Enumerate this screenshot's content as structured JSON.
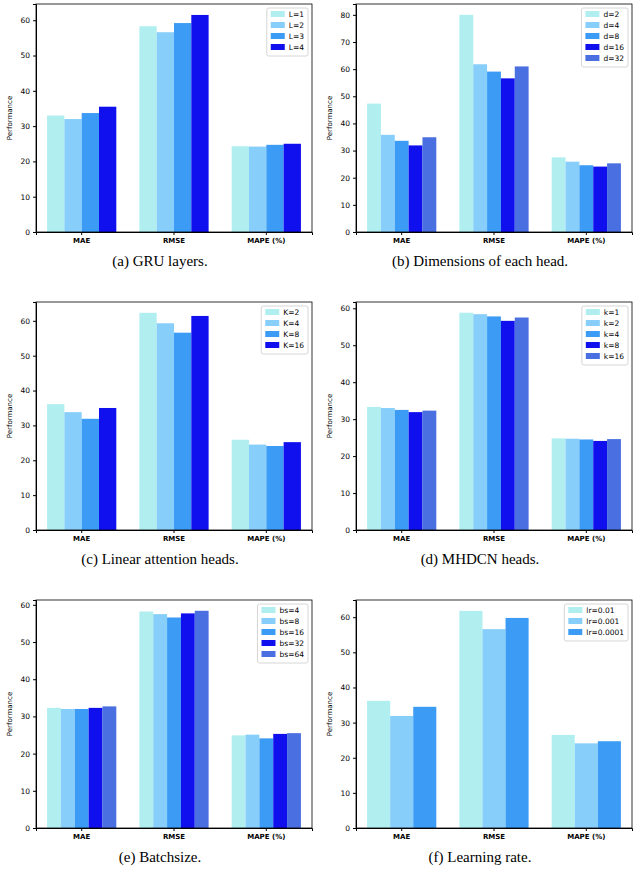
{
  "chart_data": [
    {
      "type": "bar",
      "title": "(a) GRU layers.",
      "ylabel": "Performance",
      "categories": [
        "MAE",
        "RMSE",
        "MAPE (%)"
      ],
      "series": [
        {
          "name": "L=1",
          "color": "#b0eef0",
          "values": [
            33.0,
            58.3,
            24.3
          ]
        },
        {
          "name": "L=2",
          "color": "#87cefa",
          "values": [
            32.0,
            56.6,
            24.2
          ]
        },
        {
          "name": "L=3",
          "color": "#3c9cf5",
          "values": [
            33.7,
            59.2,
            24.7
          ]
        },
        {
          "name": "L=4",
          "color": "#1010ee",
          "values": [
            35.5,
            61.5,
            25.0
          ]
        }
      ],
      "ylim": [
        0,
        64.6
      ],
      "yticks": [
        0,
        10,
        20,
        30,
        40,
        50,
        60
      ],
      "legend": "upper right"
    },
    {
      "type": "bar",
      "title": "(b) Dimensions of each head.",
      "ylabel": "Performance",
      "categories": [
        "MAE",
        "RMSE",
        "MAPE (%)"
      ],
      "series": [
        {
          "name": "d=2",
          "color": "#b0eef0",
          "values": [
            47.3,
            80.0,
            27.5
          ]
        },
        {
          "name": "d=4",
          "color": "#87cefa",
          "values": [
            35.8,
            61.8,
            25.9
          ]
        },
        {
          "name": "d=8",
          "color": "#3c9cf5",
          "values": [
            33.6,
            59.1,
            24.6
          ]
        },
        {
          "name": "d=16",
          "color": "#1010ee",
          "values": [
            31.9,
            56.6,
            24.1
          ]
        },
        {
          "name": "d=32",
          "color": "#4a6fe0",
          "values": [
            34.9,
            61.0,
            25.3
          ]
        }
      ],
      "ylim": [
        0,
        84
      ],
      "yticks": [
        0,
        10,
        20,
        30,
        40,
        50,
        60,
        70,
        80
      ],
      "legend": "upper right"
    },
    {
      "type": "bar",
      "title": "(c) Linear attention heads.",
      "ylabel": "Performance",
      "categories": [
        "MAE",
        "RMSE",
        "MAPE (%)"
      ],
      "series": [
        {
          "name": "K=2",
          "color": "#b0eef0",
          "values": [
            36.1,
            62.3,
            25.9
          ]
        },
        {
          "name": "K=4",
          "color": "#87cefa",
          "values": [
            33.8,
            59.3,
            24.5
          ]
        },
        {
          "name": "K=8",
          "color": "#3c9cf5",
          "values": [
            31.9,
            56.6,
            24.1
          ]
        },
        {
          "name": "K=16",
          "color": "#1010ee",
          "values": [
            35.0,
            61.4,
            25.2
          ]
        }
      ],
      "ylim": [
        0,
        65.4
      ],
      "yticks": [
        0,
        10,
        20,
        30,
        40,
        50,
        60
      ],
      "legend": "upper right"
    },
    {
      "type": "bar",
      "title": "(d) MHDCN heads.",
      "ylabel": "Performance",
      "categories": [
        "MAE",
        "RMSE",
        "MAPE (%)"
      ],
      "series": [
        {
          "name": "k=1",
          "color": "#b0eef0",
          "values": [
            33.3,
            58.8,
            24.8
          ]
        },
        {
          "name": "k=2",
          "color": "#87cefa",
          "values": [
            33.0,
            58.4,
            24.7
          ]
        },
        {
          "name": "k=4",
          "color": "#3c9cf5",
          "values": [
            32.5,
            57.8,
            24.5
          ]
        },
        {
          "name": "k=8",
          "color": "#1010ee",
          "values": [
            31.9,
            56.6,
            24.1
          ]
        },
        {
          "name": "k=16",
          "color": "#4a6fe0",
          "values": [
            32.3,
            57.5,
            24.6
          ]
        }
      ],
      "ylim": [
        0,
        61.7
      ],
      "yticks": [
        0,
        10,
        20,
        30,
        40,
        50,
        60
      ],
      "legend": "upper right"
    },
    {
      "type": "bar",
      "title": "(e) Batchsize.",
      "ylabel": "Performance",
      "categories": [
        "MAE",
        "RMSE",
        "MAPE (%)"
      ],
      "series": [
        {
          "name": "bs=4",
          "color": "#b0eef0",
          "values": [
            32.3,
            58.2,
            24.9
          ]
        },
        {
          "name": "bs=8",
          "color": "#87cefa",
          "values": [
            32.0,
            57.5,
            25.1
          ]
        },
        {
          "name": "bs=16",
          "color": "#3c9cf5",
          "values": [
            32.0,
            56.6,
            24.1
          ]
        },
        {
          "name": "bs=32",
          "color": "#1010ee",
          "values": [
            32.3,
            57.7,
            25.3
          ]
        },
        {
          "name": "bs=64",
          "color": "#4a6fe0",
          "values": [
            32.7,
            58.4,
            25.5
          ]
        }
      ],
      "ylim": [
        0,
        61.3
      ],
      "yticks": [
        0,
        10,
        20,
        30,
        40,
        50,
        60
      ],
      "legend": "upper right"
    },
    {
      "type": "bar",
      "title": "(f) Learning rate.",
      "ylabel": "Performance",
      "categories": [
        "MAE",
        "RMSE",
        "MAPE (%)"
      ],
      "series": [
        {
          "name": "lr=0.01",
          "color": "#b0eef0",
          "values": [
            36.2,
            61.8,
            26.5
          ]
        },
        {
          "name": "lr=0.001",
          "color": "#87cefa",
          "values": [
            31.9,
            56.6,
            24.1
          ]
        },
        {
          "name": "lr=0.0001",
          "color": "#3c9cf5",
          "values": [
            34.5,
            59.8,
            24.7
          ]
        }
      ],
      "ylim": [
        0,
        64.9
      ],
      "yticks": [
        0,
        10,
        20,
        30,
        40,
        50,
        60
      ],
      "legend": "upper right"
    }
  ]
}
